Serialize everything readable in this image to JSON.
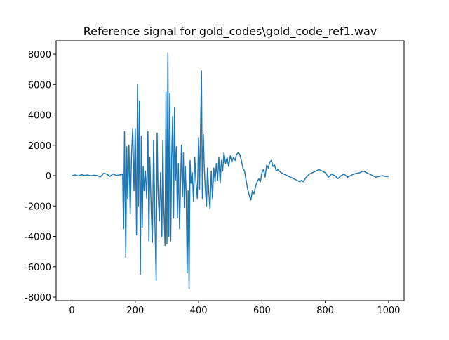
{
  "chart_data": {
    "type": "line",
    "title": "Reference signal for gold_codes\\gold_code_ref1.wav",
    "color": "#1f77b4",
    "x": [
      0,
      10,
      20,
      30,
      40,
      50,
      60,
      70,
      80,
      90,
      100,
      110,
      120,
      130,
      140,
      150,
      160,
      163,
      166,
      170,
      173,
      176,
      180,
      184,
      188,
      192,
      196,
      200,
      204,
      207,
      210,
      213,
      216,
      219,
      222,
      225,
      228,
      232,
      236,
      240,
      243,
      246,
      250,
      254,
      258,
      262,
      266,
      269,
      272,
      276,
      280,
      284,
      287,
      290,
      294,
      297,
      300,
      303,
      306,
      309,
      312,
      315,
      318,
      321,
      324,
      327,
      330,
      333,
      336,
      340,
      343,
      346,
      349,
      352,
      355,
      358,
      361,
      364,
      367,
      370,
      373,
      376,
      380,
      384,
      388,
      392,
      396,
      400,
      403,
      406,
      409,
      412,
      415,
      418,
      421,
      425,
      428,
      432,
      436,
      440,
      444,
      448,
      452,
      456,
      460,
      464,
      468,
      472,
      476,
      480,
      485,
      490,
      495,
      500,
      505,
      510,
      515,
      520,
      525,
      530,
      535,
      540,
      545,
      550,
      555,
      560,
      565,
      570,
      575,
      580,
      585,
      590,
      595,
      600,
      605,
      610,
      615,
      620,
      625,
      630,
      635,
      640,
      645,
      650,
      660,
      670,
      680,
      690,
      700,
      710,
      720,
      725,
      730,
      740,
      750,
      760,
      770,
      780,
      790,
      800,
      810,
      820,
      830,
      840,
      850,
      860,
      870,
      880,
      890,
      900,
      910,
      920,
      930,
      940,
      950,
      960,
      970,
      980,
      990,
      1000
    ],
    "values": [
      0,
      50,
      -20,
      60,
      20,
      40,
      -10,
      30,
      0,
      -80,
      150,
      100,
      -50,
      120,
      0,
      50,
      80,
      -3500,
      2900,
      -5400,
      1900,
      -1500,
      2000,
      -2500,
      1300,
      3100,
      -1000,
      3100,
      -3900,
      6000,
      -2000,
      4900,
      -6500,
      2600,
      -3400,
      600,
      -1000,
      300,
      -1500,
      2900,
      -4300,
      1200,
      -2000,
      -4400,
      2300,
      -3000,
      -6900,
      2800,
      -1000,
      -3000,
      200,
      -4000,
      2300,
      -2000,
      -4600,
      5500,
      -4500,
      8100,
      -4000,
      5400,
      -4300,
      1200,
      3900,
      -2800,
      4500,
      -300,
      1900,
      -2800,
      800,
      -3500,
      -500,
      2000,
      -1400,
      1500,
      -2100,
      600,
      -1500,
      -6400,
      -1000,
      -7450,
      1000,
      -500,
      200,
      -1700,
      1200,
      -500,
      -1500,
      2500,
      -900,
      2800,
      6900,
      -1500,
      2700,
      500,
      -800,
      -2000,
      500,
      -1000,
      -2200,
      300,
      -1500,
      500,
      -400,
      800,
      -300,
      1200,
      -500,
      1000,
      300,
      1500,
      800,
      1200,
      600,
      1300,
      900,
      1200,
      1000,
      1400,
      1500,
      1400,
      1000,
      500,
      300,
      -300,
      -900,
      -1300,
      -1600,
      -1000,
      -1200,
      -700,
      -400,
      -200,
      -400,
      200,
      400,
      -100,
      700,
      500,
      900,
      1000,
      600,
      700,
      300,
      400,
      200,
      100,
      0,
      -100,
      -200,
      -300,
      -400,
      -300,
      -400,
      -100,
      100,
      200,
      300,
      400,
      300,
      200,
      -100,
      100,
      0,
      -200,
      0,
      100,
      -100,
      0,
      100,
      150,
      200,
      300,
      200,
      100,
      0,
      -100,
      -50,
      0,
      -50,
      -50
    ],
    "xlim": [
      -50,
      1049
    ],
    "ylim": [
      -8230,
      8880
    ],
    "xticks": [
      0,
      200,
      400,
      600,
      800,
      1000
    ],
    "yticks": [
      -8000,
      -6000,
      -4000,
      -2000,
      0,
      2000,
      4000,
      6000,
      8000
    ]
  }
}
